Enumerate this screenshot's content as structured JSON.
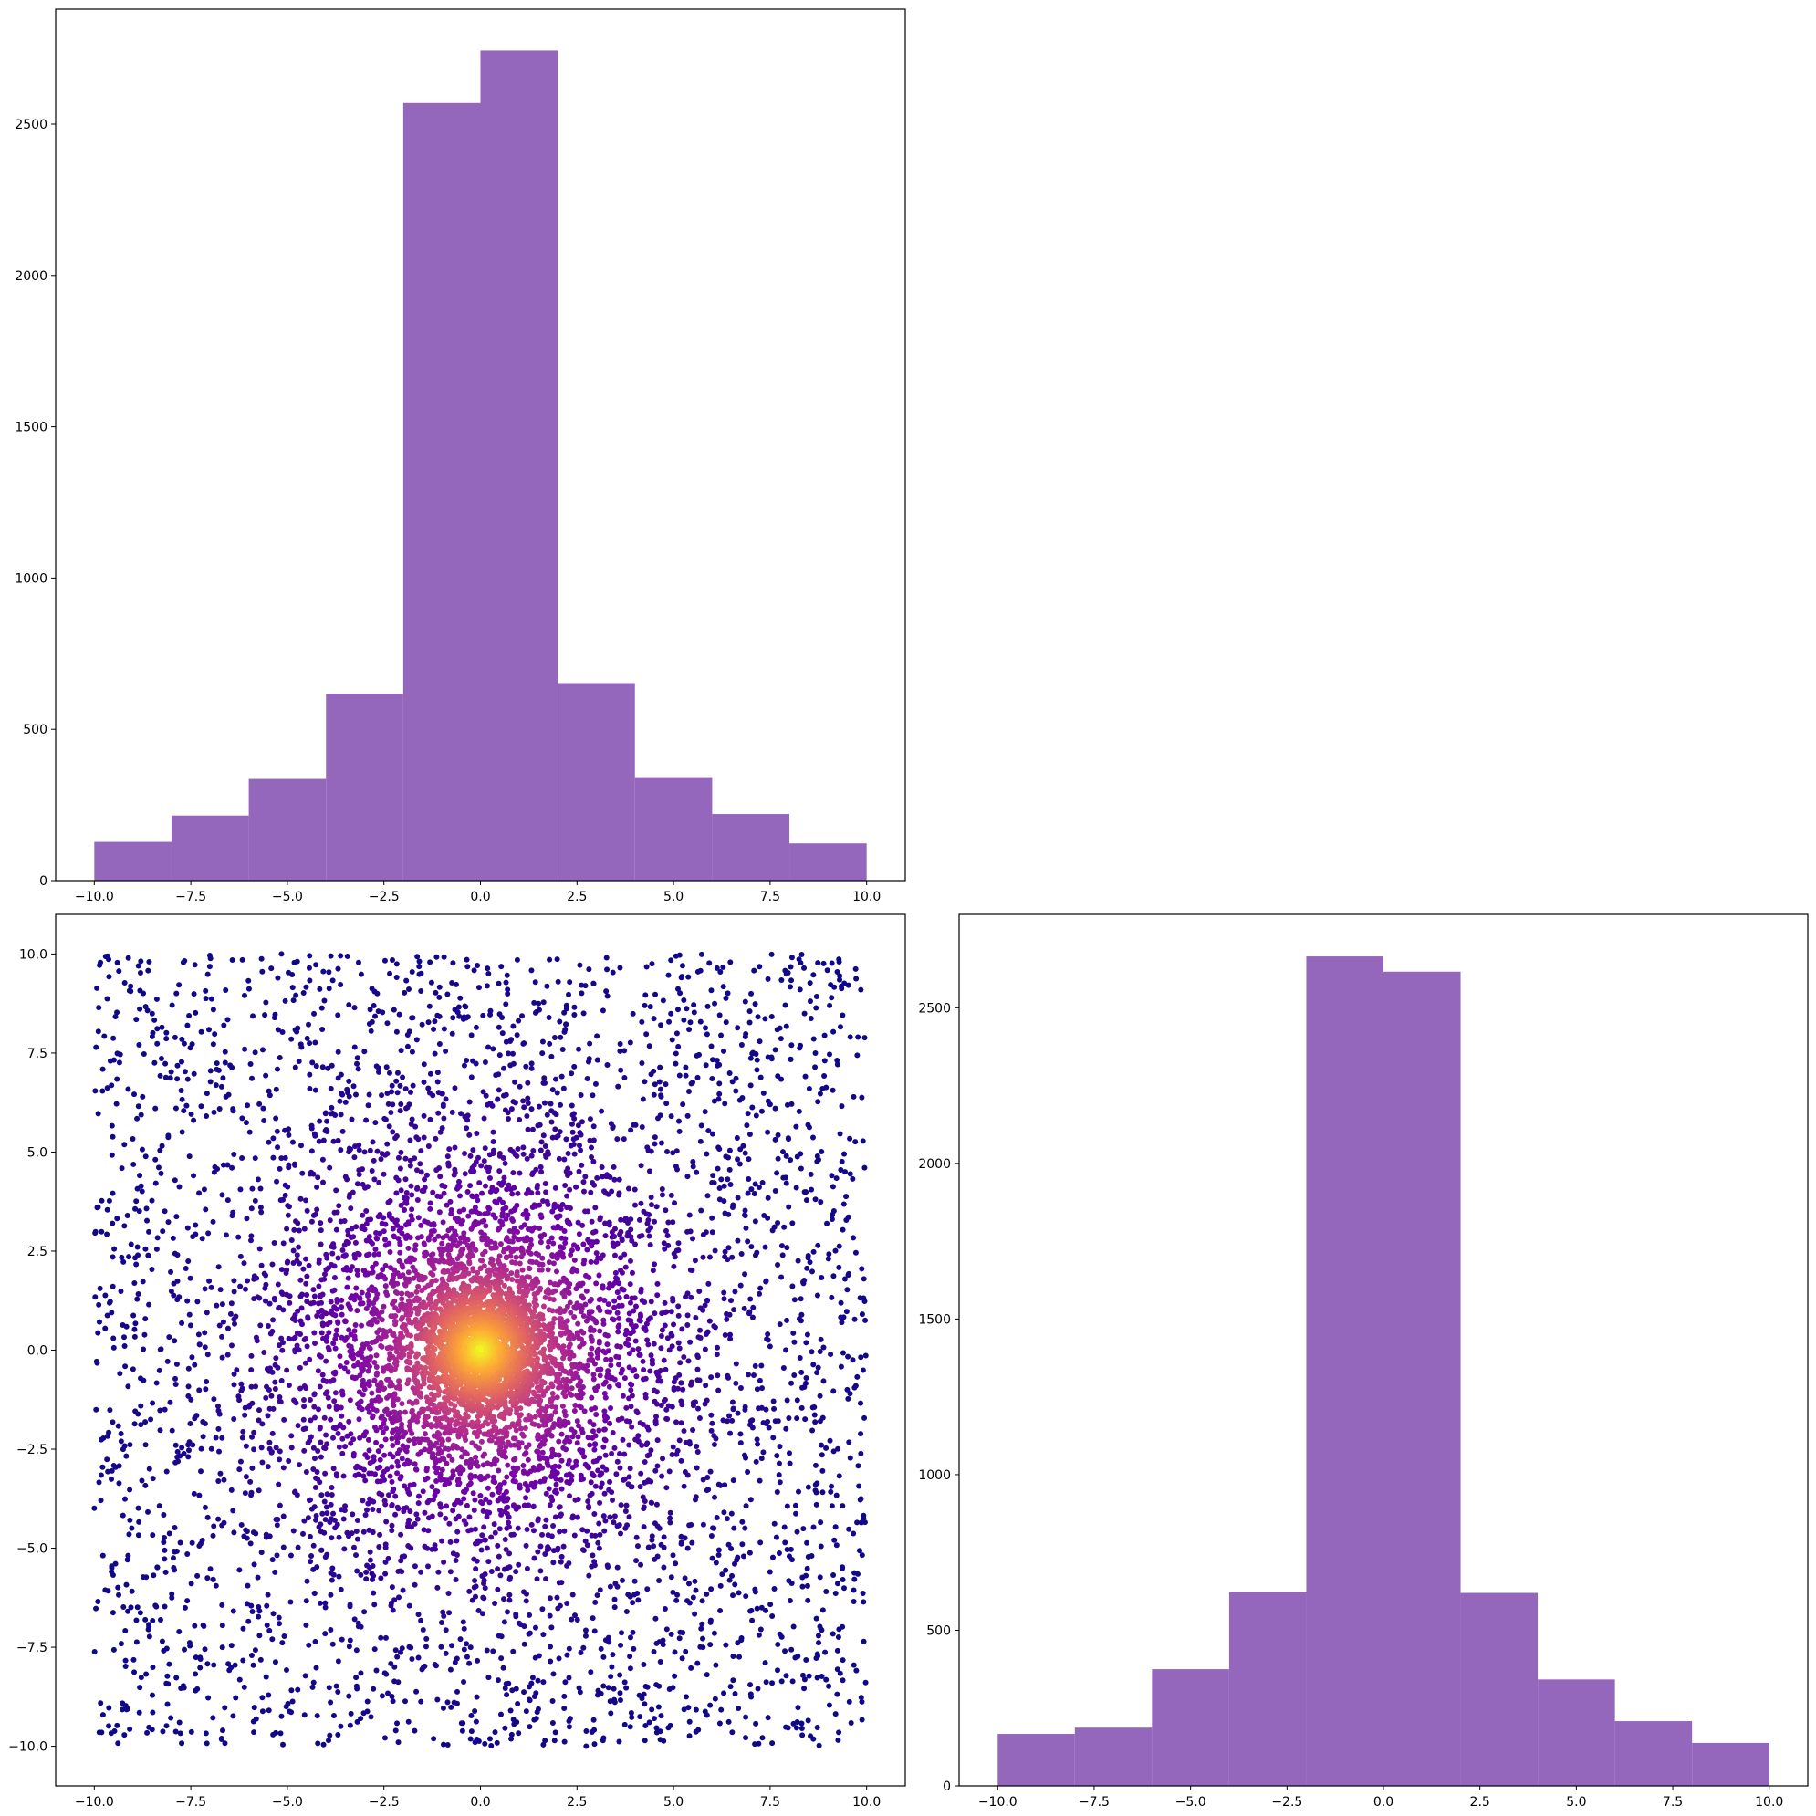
{
  "chart_data": [
    {
      "id": "top-left",
      "type": "bar",
      "subtype": "histogram",
      "title": "",
      "xlabel": "",
      "ylabel": "",
      "bar_color": "#9467bd",
      "bin_edges": [
        -10,
        -8,
        -6,
        -4,
        -2,
        0,
        2,
        4,
        6,
        8,
        10
      ],
      "values": [
        128,
        215,
        336,
        618,
        2570,
        2743,
        653,
        342,
        220,
        123
      ],
      "xlim": [
        -11,
        11
      ],
      "ylim": [
        0,
        2880
      ],
      "xticks": [
        -10.0,
        -7.5,
        -5.0,
        -2.5,
        0.0,
        2.5,
        5.0,
        7.5,
        10.0
      ],
      "xtick_labels": [
        "−10.0",
        "−7.5",
        "−5.0",
        "−2.5",
        "0.0",
        "2.5",
        "5.0",
        "7.5",
        "10.0"
      ],
      "yticks": [
        0,
        500,
        1000,
        1500,
        2000,
        2500
      ],
      "ytick_labels": [
        "0",
        "500",
        "1000",
        "1500",
        "2000",
        "2500"
      ]
    },
    {
      "id": "bottom-left",
      "type": "scatter",
      "title": "",
      "xlabel": "",
      "ylabel": "",
      "colormap": "plasma",
      "color_by": "point density",
      "colormap_stops": [
        "#0d0887",
        "#6a00a8",
        "#b12a90",
        "#e16462",
        "#fca636",
        "#f0f921"
      ],
      "n_points": 8000,
      "distribution": "mixture of a dense core centered at (0, 0) and a uniform spread over [-10, 10] in both x and y",
      "x_range": [
        -10,
        10
      ],
      "y_range": [
        -10,
        10
      ],
      "xlim": [
        -11,
        11
      ],
      "ylim": [
        -11,
        11
      ],
      "xticks": [
        -10.0,
        -7.5,
        -5.0,
        -2.5,
        0.0,
        2.5,
        5.0,
        7.5,
        10.0
      ],
      "xtick_labels": [
        "−10.0",
        "−7.5",
        "−5.0",
        "−2.5",
        "0.0",
        "2.5",
        "5.0",
        "7.5",
        "10.0"
      ],
      "yticks": [
        -10.0,
        -7.5,
        -5.0,
        -2.5,
        0.0,
        2.5,
        5.0,
        7.5,
        10.0
      ],
      "ytick_labels": [
        "−10.0",
        "−7.5",
        "−5.0",
        "−2.5",
        "0.0",
        "2.5",
        "5.0",
        "7.5",
        "10.0"
      ]
    },
    {
      "id": "bottom-right",
      "type": "bar",
      "subtype": "histogram",
      "title": "",
      "xlabel": "",
      "ylabel": "",
      "bar_color": "#9467bd",
      "bin_edges": [
        -10,
        -8,
        -6,
        -4,
        -2,
        0,
        2,
        4,
        6,
        8,
        10
      ],
      "values": [
        167,
        187,
        375,
        623,
        2665,
        2616,
        620,
        342,
        208,
        138
      ],
      "xlim": [
        -11,
        11
      ],
      "ylim": [
        0,
        2800
      ],
      "xticks": [
        -10.0,
        -7.5,
        -5.0,
        -2.5,
        0.0,
        2.5,
        5.0,
        7.5,
        10.0
      ],
      "xtick_labels": [
        "−10.0",
        "−7.5",
        "−5.0",
        "−2.5",
        "0.0",
        "2.5",
        "5.0",
        "7.5",
        "10.0"
      ],
      "yticks": [
        0,
        500,
        1000,
        1500,
        2000,
        2500
      ],
      "ytick_labels": [
        "0",
        "500",
        "1000",
        "1500",
        "2000",
        "2500"
      ]
    }
  ]
}
